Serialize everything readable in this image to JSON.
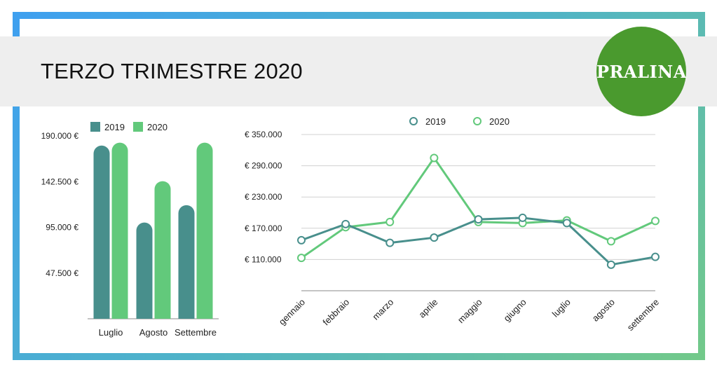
{
  "header": {
    "title": "TERZO TRIMESTRE 2020"
  },
  "logo": {
    "text": "PRALINA",
    "color": "#4a9a2e"
  },
  "colors": {
    "series2019": "#488f8c",
    "series2020": "#62c97b",
    "grid": "#d0d0d0",
    "band": "#eeeeee"
  },
  "chart_data": [
    {
      "type": "bar",
      "categories": [
        "Luglio",
        "Agosto",
        "Settembre"
      ],
      "series": [
        {
          "name": "2019",
          "values": [
            180000,
            100000,
            118000
          ]
        },
        {
          "name": "2020",
          "values": [
            183000,
            143000,
            183000
          ]
        }
      ],
      "yticks": [
        47500,
        95000,
        142500,
        190000
      ],
      "ytick_labels": [
        "47.500 €",
        "95.000 €",
        "142.500 €",
        "190.000 €"
      ],
      "ylim": [
        0,
        190000
      ],
      "grid": false,
      "legend": "top"
    },
    {
      "type": "line",
      "categories": [
        "gennaio",
        "febbraio",
        "marzo",
        "aprile",
        "maggio",
        "giugno",
        "luglio",
        "agosto",
        "settembre"
      ],
      "series": [
        {
          "name": "2019",
          "values": [
            147000,
            178000,
            142000,
            152000,
            187000,
            190000,
            180000,
            100000,
            115000
          ]
        },
        {
          "name": "2020",
          "values": [
            113000,
            172000,
            182000,
            305000,
            182000,
            180000,
            185000,
            145000,
            184000
          ]
        }
      ],
      "yticks": [
        110000,
        170000,
        230000,
        290000,
        350000
      ],
      "ytick_labels": [
        "€ 110.000",
        "€ 170.000",
        "€ 230.000",
        "€ 290.000",
        "€ 350.000"
      ],
      "ylim": [
        50000,
        350000
      ],
      "grid": true,
      "legend": "top"
    }
  ]
}
